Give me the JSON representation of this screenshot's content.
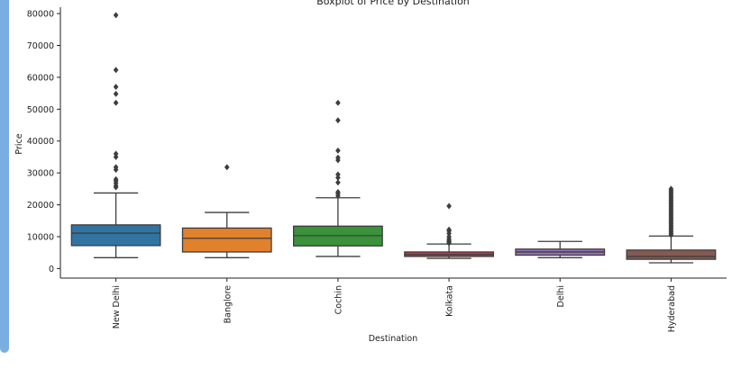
{
  "chart_data": {
    "type": "boxplot",
    "title": "Boxplot of Price by Destination",
    "xlabel": "Destination",
    "ylabel": "Price",
    "ylim": [
      -3000,
      82000
    ],
    "yticks": [
      0,
      10000,
      20000,
      30000,
      40000,
      50000,
      60000,
      70000,
      80000
    ],
    "ytick_labels": [
      "0",
      "10000",
      "20000",
      "30000",
      "40000",
      "50000",
      "60000",
      "70000",
      "80000"
    ],
    "grid": false,
    "categories": [
      "New Delhi",
      "Banglore",
      "Cochin",
      "Kolkata",
      "Delhi",
      "Hyderabad"
    ],
    "boxes": [
      {
        "category": "New Delhi",
        "color": "#3274a1",
        "whisker_low": 3400,
        "q1": 7200,
        "median": 11100,
        "q3": 13700,
        "whisker_high": 23700,
        "outliers": [
          25500,
          26000,
          26800,
          27500,
          28000,
          31000,
          31800,
          35000,
          36000,
          52000,
          54800,
          57000,
          62300,
          79500
        ]
      },
      {
        "category": "Banglore",
        "color": "#e1812c",
        "whisker_low": 3400,
        "q1": 5200,
        "median": 9500,
        "q3": 12700,
        "whisker_high": 17600,
        "outliers": [
          31800
        ]
      },
      {
        "category": "Cochin",
        "color": "#3a923a",
        "whisker_low": 3800,
        "q1": 7100,
        "median": 10300,
        "q3": 13300,
        "whisker_high": 22200,
        "outliers": [
          22800,
          23500,
          24000,
          27000,
          28500,
          29500,
          34000,
          34800,
          37000,
          46500,
          52000
        ]
      },
      {
        "category": "Kolkata",
        "color": "#c03d3e",
        "whisker_low": 3200,
        "q1": 3800,
        "median": 4400,
        "q3": 5200,
        "whisker_high": 7700,
        "outliers": [
          8000,
          8400,
          8800,
          9300,
          10000,
          11000,
          11800,
          12200,
          19600
        ]
      },
      {
        "category": "Delhi",
        "color": "#9372b2",
        "whisker_low": 3400,
        "q1": 4200,
        "median": 5200,
        "q3": 6100,
        "whisker_high": 8500,
        "outliers": []
      },
      {
        "category": "Hyderabad",
        "color": "#845b53",
        "whisker_low": 1800,
        "q1": 2900,
        "median": 3800,
        "q3": 5800,
        "whisker_high": 10200,
        "outliers": [
          10500,
          11000,
          11500,
          12000,
          12500,
          13000,
          13500,
          14000,
          14500,
          15000,
          15500,
          16000,
          16500,
          17000,
          17500,
          18000,
          18500,
          19000,
          19500,
          20000,
          20500,
          21000,
          21500,
          22000,
          22500,
          23000,
          23500,
          24000,
          24500,
          25000
        ]
      }
    ]
  }
}
